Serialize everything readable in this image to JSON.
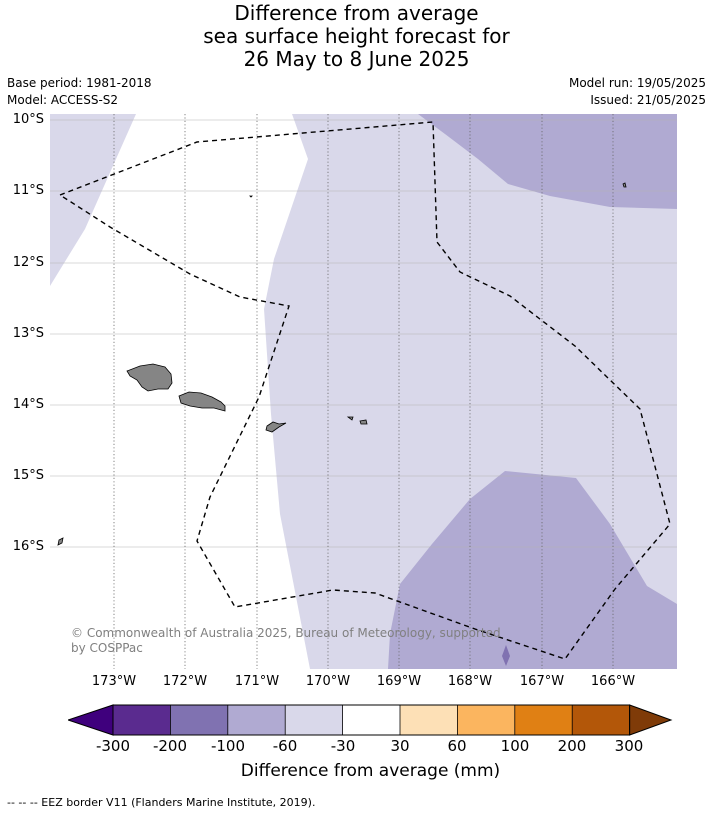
{
  "title_lines": [
    "Difference from average",
    "sea surface height forecast for",
    "26 May to 8 June 2025"
  ],
  "meta": {
    "base_period": "Base period: 1981-2018",
    "model": "Model: ACCESS-S2",
    "model_run": "Model run: 19/05/2025",
    "issued": "Issued: 21/05/2025"
  },
  "map": {
    "extent": {
      "lon_min": -173.9,
      "lon_max": -165.2,
      "lat_min": -17.75,
      "lat_max": -9.9
    },
    "lat_labels": [
      "10°S",
      "11°S",
      "12°S",
      "13°S",
      "14°S",
      "15°S",
      "16°S"
    ],
    "lon_labels": [
      "173°W",
      "172°W",
      "171°W",
      "170°W",
      "169°W",
      "168°W",
      "167°W",
      "166°W"
    ],
    "credit": "© Commonwealth of Australia 2025, Bureau of Meteorology, supported by COSPPac",
    "colors": {
      "minus_100_to_60": "#b0aad2",
      "minus_60_to_30": "#d9d8ea",
      "minus_30_to_30": "#ffffff",
      "land": "#858585"
    }
  },
  "colorbar": {
    "ticks": [
      "-300",
      "-200",
      "-100",
      "-60",
      "-30",
      "30",
      "60",
      "100",
      "200",
      "300"
    ],
    "colors": [
      "#3f007d",
      "#5a2b8f",
      "#8072b1",
      "#b0aad2",
      "#d9d8ea",
      "#ffffff",
      "#fde0b6",
      "#fbb55f",
      "#e08014",
      "#b35709",
      "#7f3b08"
    ],
    "label": "Difference from average (mm)"
  },
  "footer": "-- -- -- EEZ border V11 (Flanders Marine Institute, 2019)."
}
